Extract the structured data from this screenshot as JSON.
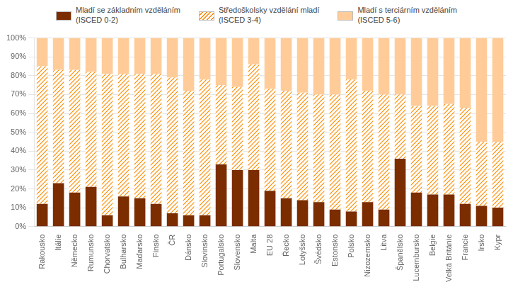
{
  "chart_data": {
    "type": "bar",
    "stacked": true,
    "categories": [
      "Rakousko",
      "Itálie",
      "Německo",
      "Rumunsko",
      "Chorvatsko",
      "Bulharsko",
      "Maďarsko",
      "Finsko",
      "ČR",
      "Dánsko",
      "Slovinsko",
      "Portugalsko",
      "Slovensko",
      "Malta",
      "EU 28",
      "Řecko",
      "Lotyšsko",
      "Švédsko",
      "Estonsko",
      "Polsko",
      "Nizozemsko",
      "Litva",
      "Španělsko",
      "Lucembursko",
      "Belgie",
      "Velká Británie",
      "Francie",
      "Irsko",
      "Kypr"
    ],
    "series": [
      {
        "name": "Mladí se základním vzděláním\n(ISCED 0-2)",
        "color": "#7B2D00",
        "values": [
          12,
          23,
          18,
          21,
          6,
          16,
          15,
          12,
          7,
          6,
          6,
          33,
          30,
          30,
          19,
          15,
          14,
          13,
          9,
          8,
          13,
          9,
          36,
          18,
          17,
          17,
          12,
          11,
          10
        ]
      },
      {
        "name": "Středoškolsky vzdělání mladí\n(ISCED 3-4)",
        "color": "#FF8C00",
        "values": [
          73,
          60,
          65,
          61,
          75,
          65,
          66,
          69,
          72,
          66,
          72,
          42,
          44,
          56,
          54,
          57,
          57,
          57,
          61,
          70,
          59,
          61,
          34,
          46,
          47,
          48,
          51,
          34,
          35
        ]
      },
      {
        "name": "Mladí s terciárním vzděláním\n(ISCED 5-6)",
        "color": "#FFCC99",
        "values": [
          15,
          17,
          17,
          18,
          19,
          19,
          19,
          19,
          21,
          28,
          22,
          25,
          26,
          14,
          27,
          28,
          29,
          30,
          30,
          22,
          28,
          30,
          30,
          36,
          36,
          35,
          37,
          55,
          55
        ]
      }
    ],
    "ylim": [
      0,
      100
    ],
    "yticks": [
      {
        "value": 0,
        "label": "0%"
      },
      {
        "value": 10,
        "label": "10%"
      },
      {
        "value": 20,
        "label": "20%"
      },
      {
        "value": 30,
        "label": "30%"
      },
      {
        "value": 40,
        "label": "40%"
      },
      {
        "value": 50,
        "label": "50%"
      },
      {
        "value": 60,
        "label": "60%"
      },
      {
        "value": 70,
        "label": "70%"
      },
      {
        "value": 80,
        "label": "80%"
      },
      {
        "value": 90,
        "label": "90%"
      },
      {
        "value": 100,
        "label": "100%"
      }
    ],
    "grid": true,
    "legend": "top"
  }
}
